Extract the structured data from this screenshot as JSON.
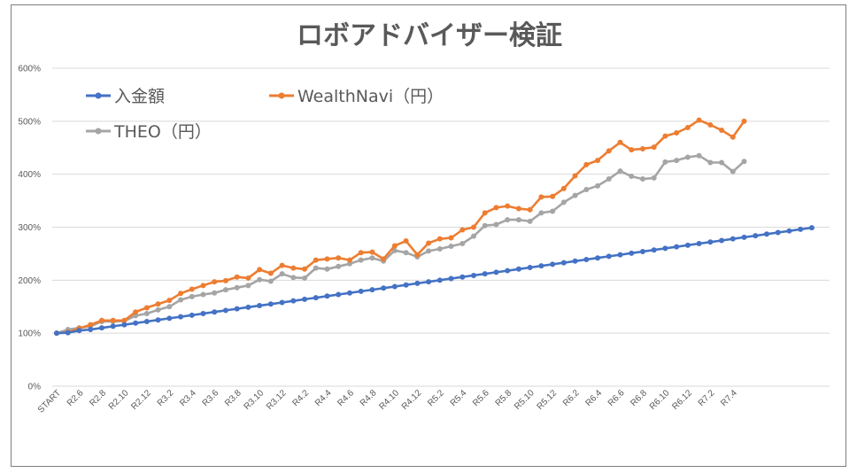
{
  "chart_data": {
    "type": "line",
    "title": "ロボアドバイザー検証",
    "yticks": [
      "0%",
      "100%",
      "200%",
      "300%",
      "400%",
      "500%",
      "600%"
    ],
    "ylim": [
      0,
      600
    ],
    "grid": true,
    "legend_position": "top-left",
    "x_tick_labels": [
      "START",
      "R2.6",
      "R2.8",
      "R2.10",
      "R2.12",
      "R3.2",
      "R3.4",
      "R3.6",
      "R3.8",
      "R3.10",
      "R3.12",
      "R4.2",
      "R4.4",
      "R4.6",
      "R4.8",
      "R4.10",
      "R4.12",
      "R5.2",
      "R5.4",
      "R5.6",
      "R5.8",
      "R5.10",
      "R5.12",
      "R6.2",
      "R6.4",
      "R6.6",
      "R6.8",
      "R6.10",
      "R6.12",
      "R7.2",
      "R7.4"
    ],
    "series": [
      {
        "name": "入金額",
        "color": "#4472c4",
        "values": [
          100,
          101,
          105,
          107,
          110,
          113,
          116,
          119,
          122,
          125,
          128,
          131,
          134,
          137,
          140,
          143,
          146,
          149,
          152,
          155,
          158,
          161,
          164,
          167,
          170,
          173,
          176,
          179,
          182,
          185,
          188,
          191,
          194,
          197,
          200,
          203,
          206,
          209,
          212,
          215,
          218,
          221,
          224,
          227,
          230,
          233,
          236,
          239,
          242,
          245,
          248,
          251,
          254,
          257,
          260,
          263,
          266,
          269,
          272,
          275,
          278,
          281,
          284,
          287,
          290,
          293,
          296,
          299
        ]
      },
      {
        "name": "WealthNavi（円）",
        "color": "#ed7d31",
        "values": [
          100,
          102,
          109,
          116,
          124,
          124,
          124,
          140,
          148,
          155,
          162,
          175,
          183,
          190,
          197,
          199,
          206,
          204,
          220,
          213,
          228,
          223,
          221,
          238,
          240,
          242,
          238,
          252,
          253,
          240,
          265,
          274,
          248,
          270,
          278,
          280,
          295,
          300,
          327,
          337,
          340,
          335,
          333,
          357,
          358,
          373,
          397,
          418,
          426,
          444,
          460,
          446,
          448,
          451,
          472,
          478,
          488,
          502,
          493,
          483,
          470,
          500
        ]
      },
      {
        "name": "THEO（円）",
        "color": "#a5a5a5",
        "values": [
          100,
          107,
          110,
          113,
          122,
          122,
          123,
          133,
          137,
          144,
          150,
          163,
          169,
          173,
          176,
          182,
          186,
          190,
          201,
          198,
          212,
          205,
          204,
          223,
          221,
          226,
          231,
          238,
          242,
          236,
          256,
          252,
          244,
          255,
          259,
          264,
          269,
          283,
          303,
          305,
          314,
          314,
          311,
          327,
          330,
          347,
          360,
          371,
          378,
          391,
          406,
          396,
          391,
          393,
          423,
          426,
          432,
          435,
          422,
          422,
          405,
          424
        ]
      }
    ]
  }
}
